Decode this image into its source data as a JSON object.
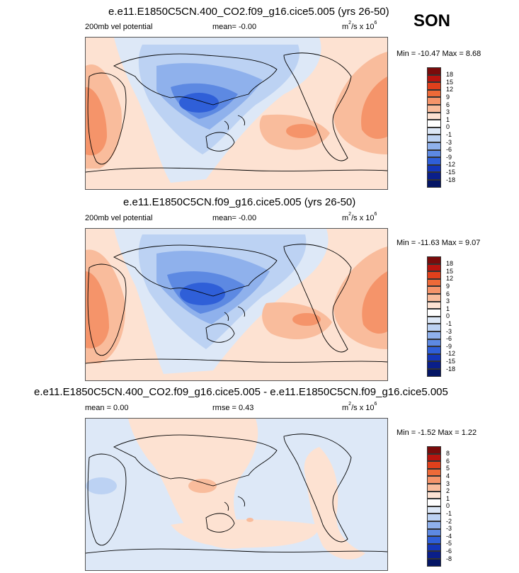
{
  "season": "SON",
  "panels": [
    {
      "title": "e.e11.E1850C5CN.400_CO2.f09_g16.cice5.005 (yrs 26-50)",
      "left_label": "200mb vel potential",
      "mean_label": "mean=  -0.00",
      "units_base": "m",
      "units_exp": "2",
      "units_mid": "/s x 10",
      "units_exp2": "6",
      "minmax": "Min = -10.47 Max =  8.68",
      "colorbar": {
        "levels": [
          "18",
          "15",
          "12",
          "9",
          "6",
          "3",
          "1",
          "0",
          "-1",
          "-3",
          "-6",
          "-9",
          "-12",
          "-15",
          "-18"
        ],
        "colors": [
          "#7a0b0b",
          "#b8140f",
          "#e0401c",
          "#ee6a38",
          "#f5946a",
          "#f9bc9c",
          "#fde2d2",
          "#ffffff",
          "#dde8f7",
          "#bcd2f3",
          "#8fb1ec",
          "#5d89e2",
          "#2f5fd8",
          "#1436b9",
          "#0a1f8a",
          "#041565"
        ]
      },
      "chart_data": {
        "type": "heatmap",
        "field": "200mb velocity potential",
        "units": "m^2/s x 10^6",
        "min": -10.47,
        "max": 8.68,
        "mean": -0.0
      }
    },
    {
      "title": "e.e11.E1850C5CN.f09_g16.cice5.005 (yrs 26-50)",
      "left_label": "200mb vel potential",
      "mean_label": "mean=  -0.00",
      "units_base": "m",
      "units_exp": "2",
      "units_mid": "/s x 10",
      "units_exp2": "6",
      "minmax": "Min = -11.63 Max =  9.07",
      "colorbar": {
        "levels": [
          "18",
          "15",
          "12",
          "9",
          "6",
          "3",
          "1",
          "0",
          "-1",
          "-3",
          "-6",
          "-9",
          "-12",
          "-15",
          "-18"
        ],
        "colors": [
          "#7a0b0b",
          "#b8140f",
          "#e0401c",
          "#ee6a38",
          "#f5946a",
          "#f9bc9c",
          "#fde2d2",
          "#ffffff",
          "#dde8f7",
          "#bcd2f3",
          "#8fb1ec",
          "#5d89e2",
          "#2f5fd8",
          "#1436b9",
          "#0a1f8a",
          "#041565"
        ]
      },
      "chart_data": {
        "type": "heatmap",
        "field": "200mb velocity potential",
        "units": "m^2/s x 10^6",
        "min": -11.63,
        "max": 9.07,
        "mean": -0.0
      }
    },
    {
      "title": "e.e11.E1850C5CN.400_CO2.f09_g16.cice5.005 - e.e11.E1850C5CN.f09_g16.cice5.005",
      "left_label": "mean =  0.00",
      "mean_label": "rmse =  0.43",
      "units_base": "m",
      "units_exp": "2",
      "units_mid": "/s x 10",
      "units_exp2": "6",
      "minmax": "Min = -1.52 Max =  1.22",
      "colorbar": {
        "levels": [
          "8",
          "6",
          "5",
          "4",
          "3",
          "2",
          "1",
          "0",
          "-1",
          "-2",
          "-3",
          "-4",
          "-5",
          "-6",
          "-8"
        ],
        "colors": [
          "#7a0b0b",
          "#b8140f",
          "#e0401c",
          "#ee6a38",
          "#f5946a",
          "#f9bc9c",
          "#fde2d2",
          "#ffffff",
          "#dde8f7",
          "#bcd2f3",
          "#8fb1ec",
          "#5d89e2",
          "#2f5fd8",
          "#1436b9",
          "#0a1f8a",
          "#041565"
        ]
      },
      "chart_data": {
        "type": "heatmap",
        "field": "200mb velocity potential difference",
        "units": "m^2/s x 10^6",
        "min": -1.52,
        "max": 1.22,
        "mean": 0.0,
        "rmse": 0.43
      }
    }
  ]
}
